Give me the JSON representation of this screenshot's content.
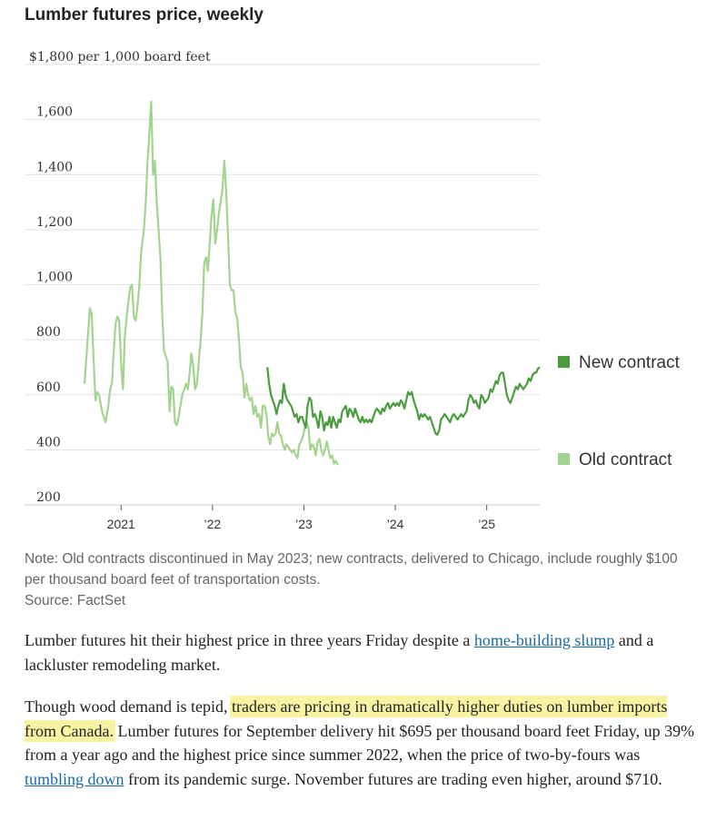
{
  "chart_data": {
    "type": "line",
    "title": "Lumber futures price, weekly",
    "ylabel": "$1,800 per 1,000 board feet",
    "ylim": [
      200,
      1800
    ],
    "yticks": [
      200,
      400,
      600,
      800,
      1000,
      1200,
      1400,
      1600
    ],
    "ytick_labels": [
      "200",
      "400",
      "600",
      "800",
      "1,000",
      "1,200",
      "1,400",
      "1,600"
    ],
    "xlim": [
      2020.6,
      2025.58
    ],
    "xticks": [
      2021,
      2022,
      2023,
      2024,
      2025
    ],
    "xtick_labels": [
      "2021",
      "’22",
      "’23",
      "’24",
      "’25"
    ],
    "legend": [
      "New contract",
      "Old contract"
    ],
    "series": [
      {
        "name": "Old contract",
        "color": "#a3d48f",
        "points": [
          [
            2020.6,
            640
          ],
          [
            2020.63,
            780
          ],
          [
            2020.66,
            915
          ],
          [
            2020.68,
            890
          ],
          [
            2020.7,
            720
          ],
          [
            2020.72,
            580
          ],
          [
            2020.74,
            610
          ],
          [
            2020.76,
            600
          ],
          [
            2020.78,
            560
          ],
          [
            2020.8,
            530
          ],
          [
            2020.83,
            500
          ],
          [
            2020.86,
            560
          ],
          [
            2020.88,
            620
          ],
          [
            2020.9,
            640
          ],
          [
            2020.92,
            760
          ],
          [
            2020.94,
            860
          ],
          [
            2020.96,
            885
          ],
          [
            2020.98,
            870
          ],
          [
            2021.0,
            720
          ],
          [
            2021.02,
            620
          ],
          [
            2021.04,
            810
          ],
          [
            2021.06,
            880
          ],
          [
            2021.08,
            940
          ],
          [
            2021.1,
            990
          ],
          [
            2021.12,
            1000
          ],
          [
            2021.14,
            880
          ],
          [
            2021.16,
            870
          ],
          [
            2021.18,
            920
          ],
          [
            2021.2,
            1000
          ],
          [
            2021.22,
            1120
          ],
          [
            2021.25,
            1200
          ],
          [
            2021.27,
            1300
          ],
          [
            2021.29,
            1450
          ],
          [
            2021.31,
            1550
          ],
          [
            2021.33,
            1665
          ],
          [
            2021.35,
            1400
          ],
          [
            2021.37,
            1450
          ],
          [
            2021.39,
            1300
          ],
          [
            2021.41,
            1200
          ],
          [
            2021.43,
            1100
          ],
          [
            2021.45,
            900
          ],
          [
            2021.47,
            760
          ],
          [
            2021.49,
            740
          ],
          [
            2021.51,
            720
          ],
          [
            2021.53,
            540
          ],
          [
            2021.55,
            630
          ],
          [
            2021.57,
            620
          ],
          [
            2021.59,
            500
          ],
          [
            2021.61,
            490
          ],
          [
            2021.63,
            520
          ],
          [
            2021.65,
            560
          ],
          [
            2021.67,
            600
          ],
          [
            2021.69,
            620
          ],
          [
            2021.71,
            640
          ],
          [
            2021.73,
            620
          ],
          [
            2021.75,
            680
          ],
          [
            2021.77,
            750
          ],
          [
            2021.79,
            700
          ],
          [
            2021.81,
            620
          ],
          [
            2021.83,
            640
          ],
          [
            2021.85,
            720
          ],
          [
            2021.87,
            800
          ],
          [
            2021.89,
            900
          ],
          [
            2021.91,
            1080
          ],
          [
            2021.93,
            1100
          ],
          [
            2021.95,
            1050
          ],
          [
            2021.97,
            1150
          ],
          [
            2021.99,
            1250
          ],
          [
            2022.01,
            1310
          ],
          [
            2022.03,
            1150
          ],
          [
            2022.05,
            1200
          ],
          [
            2022.07,
            1260
          ],
          [
            2022.09,
            1300
          ],
          [
            2022.11,
            1350
          ],
          [
            2022.13,
            1450
          ],
          [
            2022.15,
            1340
          ],
          [
            2022.17,
            1180
          ],
          [
            2022.19,
            1000
          ],
          [
            2022.21,
            980
          ],
          [
            2022.23,
            980
          ],
          [
            2022.25,
            900
          ],
          [
            2022.27,
            880
          ],
          [
            2022.29,
            800
          ],
          [
            2022.31,
            700
          ],
          [
            2022.33,
            680
          ],
          [
            2022.35,
            590
          ],
          [
            2022.37,
            640
          ],
          [
            2022.39,
            600
          ],
          [
            2022.41,
            580
          ],
          [
            2022.43,
            590
          ],
          [
            2022.45,
            530
          ],
          [
            2022.47,
            560
          ],
          [
            2022.49,
            520
          ],
          [
            2022.51,
            530
          ],
          [
            2022.53,
            480
          ],
          [
            2022.55,
            560
          ],
          [
            2022.57,
            560
          ],
          [
            2022.59,
            530
          ],
          [
            2022.61,
            450
          ],
          [
            2022.63,
            420
          ],
          [
            2022.65,
            460
          ],
          [
            2022.67,
            450
          ],
          [
            2022.69,
            460
          ],
          [
            2022.71,
            500
          ],
          [
            2022.73,
            460
          ],
          [
            2022.75,
            450
          ],
          [
            2022.77,
            420
          ],
          [
            2022.79,
            400
          ],
          [
            2022.81,
            420
          ],
          [
            2022.83,
            410
          ],
          [
            2022.85,
            400
          ],
          [
            2022.87,
            390
          ],
          [
            2022.89,
            400
          ],
          [
            2022.91,
            380
          ],
          [
            2022.93,
            370
          ],
          [
            2022.95,
            420
          ],
          [
            2022.97,
            430
          ],
          [
            2022.99,
            450
          ],
          [
            2023.01,
            480
          ],
          [
            2023.03,
            500
          ],
          [
            2023.05,
            480
          ],
          [
            2023.07,
            400
          ],
          [
            2023.09,
            420
          ],
          [
            2023.11,
            410
          ],
          [
            2023.13,
            380
          ],
          [
            2023.15,
            430
          ],
          [
            2023.17,
            440
          ],
          [
            2023.19,
            400
          ],
          [
            2023.21,
            380
          ],
          [
            2023.23,
            400
          ],
          [
            2023.25,
            430
          ],
          [
            2023.27,
            400
          ],
          [
            2023.29,
            370
          ],
          [
            2023.31,
            380
          ],
          [
            2023.33,
            350
          ],
          [
            2023.35,
            360
          ],
          [
            2023.37,
            345
          ]
        ]
      },
      {
        "name": "New contract",
        "color": "#4a9c3f",
        "points": [
          [
            2022.6,
            700
          ],
          [
            2022.62,
            640
          ],
          [
            2022.64,
            600
          ],
          [
            2022.66,
            580
          ],
          [
            2022.68,
            560
          ],
          [
            2022.7,
            530
          ],
          [
            2022.72,
            560
          ],
          [
            2022.74,
            580
          ],
          [
            2022.76,
            570
          ],
          [
            2022.78,
            640
          ],
          [
            2022.8,
            600
          ],
          [
            2022.82,
            580
          ],
          [
            2022.84,
            570
          ],
          [
            2022.86,
            560
          ],
          [
            2022.88,
            540
          ],
          [
            2022.9,
            520
          ],
          [
            2022.92,
            530
          ],
          [
            2022.94,
            500
          ],
          [
            2022.96,
            520
          ],
          [
            2022.98,
            520
          ],
          [
            2023.0,
            500
          ],
          [
            2023.02,
            480
          ],
          [
            2023.04,
            560
          ],
          [
            2023.06,
            590
          ],
          [
            2023.08,
            580
          ],
          [
            2023.1,
            520
          ],
          [
            2023.12,
            530
          ],
          [
            2023.14,
            510
          ],
          [
            2023.16,
            480
          ],
          [
            2023.18,
            540
          ],
          [
            2023.2,
            520
          ],
          [
            2023.22,
            470
          ],
          [
            2023.24,
            500
          ],
          [
            2023.26,
            490
          ],
          [
            2023.28,
            520
          ],
          [
            2023.3,
            480
          ],
          [
            2023.32,
            520
          ],
          [
            2023.34,
            500
          ],
          [
            2023.36,
            480
          ],
          [
            2023.38,
            510
          ],
          [
            2023.4,
            500
          ],
          [
            2023.42,
            540
          ],
          [
            2023.44,
            550
          ],
          [
            2023.46,
            560
          ],
          [
            2023.48,
            520
          ],
          [
            2023.5,
            550
          ],
          [
            2023.52,
            540
          ],
          [
            2023.54,
            520
          ],
          [
            2023.56,
            550
          ],
          [
            2023.58,
            530
          ],
          [
            2023.6,
            510
          ],
          [
            2023.62,
            500
          ],
          [
            2023.64,
            520
          ],
          [
            2023.66,
            500
          ],
          [
            2023.68,
            510
          ],
          [
            2023.7,
            500
          ],
          [
            2023.72,
            510
          ],
          [
            2023.74,
            500
          ],
          [
            2023.76,
            520
          ],
          [
            2023.78,
            540
          ],
          [
            2023.8,
            550
          ],
          [
            2023.82,
            540
          ],
          [
            2023.84,
            530
          ],
          [
            2023.86,
            550
          ],
          [
            2023.88,
            540
          ],
          [
            2023.9,
            560
          ],
          [
            2023.92,
            570
          ],
          [
            2023.94,
            550
          ],
          [
            2023.96,
            560
          ],
          [
            2023.98,
            570
          ],
          [
            2024.0,
            560
          ],
          [
            2024.02,
            570
          ],
          [
            2024.04,
            560
          ],
          [
            2024.06,
            580
          ],
          [
            2024.08,
            570
          ],
          [
            2024.1,
            550
          ],
          [
            2024.12,
            580
          ],
          [
            2024.14,
            610
          ],
          [
            2024.16,
            600
          ],
          [
            2024.18,
            610
          ],
          [
            2024.2,
            580
          ],
          [
            2024.22,
            560
          ],
          [
            2024.24,
            540
          ],
          [
            2024.26,
            510
          ],
          [
            2024.28,
            530
          ],
          [
            2024.3,
            520
          ],
          [
            2024.32,
            530
          ],
          [
            2024.34,
            520
          ],
          [
            2024.36,
            510
          ],
          [
            2024.38,
            520
          ],
          [
            2024.4,
            500
          ],
          [
            2024.42,
            480
          ],
          [
            2024.44,
            460
          ],
          [
            2024.46,
            455
          ],
          [
            2024.48,
            470
          ],
          [
            2024.5,
            510
          ],
          [
            2024.52,
            520
          ],
          [
            2024.54,
            530
          ],
          [
            2024.56,
            520
          ],
          [
            2024.58,
            510
          ],
          [
            2024.6,
            500
          ],
          [
            2024.62,
            520
          ],
          [
            2024.64,
            530
          ],
          [
            2024.66,
            520
          ],
          [
            2024.68,
            510
          ],
          [
            2024.7,
            520
          ],
          [
            2024.72,
            530
          ],
          [
            2024.74,
            520
          ],
          [
            2024.76,
            530
          ],
          [
            2024.78,
            540
          ],
          [
            2024.8,
            580
          ],
          [
            2024.82,
            600
          ],
          [
            2024.84,
            590
          ],
          [
            2024.86,
            570
          ],
          [
            2024.88,
            580
          ],
          [
            2024.9,
            560
          ],
          [
            2024.92,
            550
          ],
          [
            2024.94,
            600
          ],
          [
            2024.96,
            590
          ],
          [
            2024.98,
            570
          ],
          [
            2025.0,
            580
          ],
          [
            2025.02,
            590
          ],
          [
            2025.04,
            620
          ],
          [
            2025.06,
            610
          ],
          [
            2025.08,
            630
          ],
          [
            2025.1,
            650
          ],
          [
            2025.12,
            640
          ],
          [
            2025.14,
            670
          ],
          [
            2025.16,
            680
          ],
          [
            2025.18,
            680
          ],
          [
            2025.2,
            640
          ],
          [
            2025.22,
            600
          ],
          [
            2025.24,
            580
          ],
          [
            2025.26,
            570
          ],
          [
            2025.28,
            590
          ],
          [
            2025.3,
            610
          ],
          [
            2025.32,
            630
          ],
          [
            2025.34,
            620
          ],
          [
            2025.36,
            640
          ],
          [
            2025.38,
            630
          ],
          [
            2025.4,
            620
          ],
          [
            2025.42,
            630
          ],
          [
            2025.44,
            640
          ],
          [
            2025.46,
            660
          ],
          [
            2025.48,
            650
          ],
          [
            2025.5,
            670
          ],
          [
            2025.52,
            680
          ],
          [
            2025.54,
            680
          ],
          [
            2025.56,
            695
          ],
          [
            2025.58,
            700
          ]
        ]
      }
    ]
  },
  "notes": {
    "note": "Note: Old contracts discontinued in May 2023; new contracts, delivered to Chicago, include roughly $100 per thousand board feet of transportation costs.",
    "source": "Source: FactSet"
  },
  "article": {
    "p1_a": "Lumber futures hit their highest price in three years Friday despite a ",
    "p1_link": "home-building slump",
    "p1_b": " and a lackluster remodeling market.",
    "p2_a": "Though wood demand is tepid, ",
    "p2_highlight": "traders are pricing in dramatically higher duties on lumber imports from Canada.",
    "p2_b": " Lumber futures for September delivery hit $695 per thousand board feet Friday, up 39% from a year ago and the highest price since summer 2022, when the price of two-by-fours was ",
    "p2_link": "tumbling down",
    "p2_c": " from its pandemic surge. November futures are trading even higher, around $710."
  }
}
